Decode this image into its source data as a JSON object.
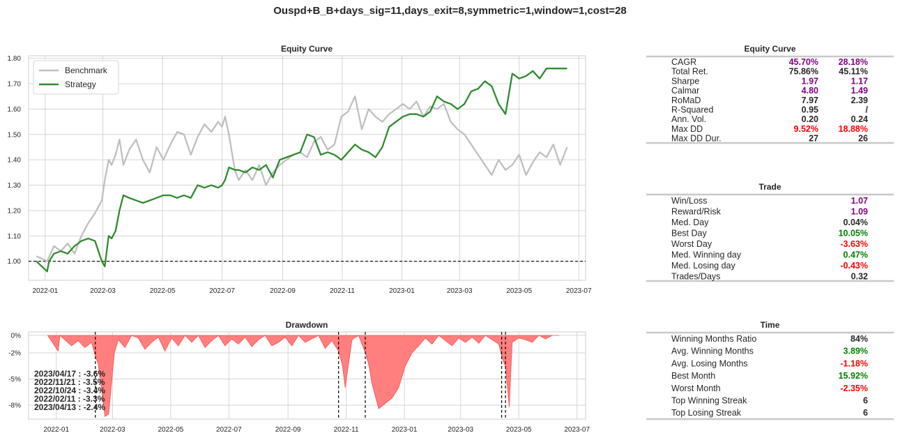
{
  "suptitle": "Ouspd+B_B+days_sig=11,days_exit=8,symmetric=1,window=1,cost=28",
  "colors": {
    "benchmark": "#bfbfbf",
    "strategy": "#2e8b2e",
    "drawdown_fill": "#ff7f7f",
    "drawdown_edge": "#ff4d4d",
    "purple": "#800080",
    "green": "#008000",
    "red": "#ff0000",
    "dark": "#262626",
    "grid": "#d4d4d4"
  },
  "chart_data": [
    {
      "type": "line",
      "title": "Equity Curve",
      "xlabel": "",
      "ylabel": "",
      "x_ticks": [
        "2022-01",
        "2022-03",
        "2022-05",
        "2022-07",
        "2022-09",
        "2022-11",
        "2023-01",
        "2023-03",
        "2023-05",
        "2023-07"
      ],
      "x_range": [
        "2021-12",
        "2023-07"
      ],
      "y_ticks": [
        "1.00",
        "1.10",
        "1.20",
        "1.30",
        "1.40",
        "1.50",
        "1.60",
        "1.70",
        "1.80"
      ],
      "ylim": [
        0.925,
        1.81
      ],
      "reference_line": 1.0,
      "legend": {
        "position": "upper-left",
        "entries": [
          "Benchmark",
          "Strategy"
        ]
      },
      "grid": true,
      "series": [
        {
          "name": "Benchmark",
          "x": [
            "2021-12-23",
            "2022-01-03",
            "2022-01-10",
            "2022-01-17",
            "2022-01-24",
            "2022-01-31",
            "2022-02-07",
            "2022-02-14",
            "2022-02-21",
            "2022-02-28",
            "2022-03-03",
            "2022-03-07",
            "2022-03-10",
            "2022-03-14",
            "2022-03-18",
            "2022-03-22",
            "2022-03-28",
            "2022-04-04",
            "2022-04-11",
            "2022-04-18",
            "2022-04-25",
            "2022-05-02",
            "2022-05-09",
            "2022-05-16",
            "2022-05-23",
            "2022-05-30",
            "2022-06-06",
            "2022-06-13",
            "2022-06-20",
            "2022-06-27",
            "2022-07-01",
            "2022-07-04",
            "2022-07-08",
            "2022-07-14",
            "2022-07-18",
            "2022-07-25",
            "2022-08-01",
            "2022-08-08",
            "2022-08-15",
            "2022-08-22",
            "2022-08-29",
            "2022-09-05",
            "2022-09-12",
            "2022-09-19",
            "2022-09-26",
            "2022-10-03",
            "2022-10-10",
            "2022-10-17",
            "2022-10-24",
            "2022-10-31",
            "2022-11-07",
            "2022-11-14",
            "2022-11-21",
            "2022-11-28",
            "2022-12-05",
            "2022-12-12",
            "2022-12-19",
            "2022-12-26",
            "2023-01-02",
            "2023-01-09",
            "2023-01-16",
            "2023-01-23",
            "2023-01-30",
            "2023-02-06",
            "2023-02-13",
            "2023-02-20",
            "2023-02-27",
            "2023-03-06",
            "2023-03-13",
            "2023-03-20",
            "2023-03-27",
            "2023-04-03",
            "2023-04-10",
            "2023-04-17",
            "2023-04-24",
            "2023-05-01",
            "2023-05-08",
            "2023-05-15",
            "2023-05-22",
            "2023-05-29",
            "2023-06-05",
            "2023-06-12",
            "2023-06-19"
          ],
          "values": [
            1.02,
            1.0,
            1.06,
            1.04,
            1.07,
            1.03,
            1.1,
            1.15,
            1.19,
            1.24,
            1.32,
            1.4,
            1.38,
            1.42,
            1.48,
            1.38,
            1.44,
            1.48,
            1.4,
            1.35,
            1.45,
            1.4,
            1.46,
            1.51,
            1.5,
            1.42,
            1.49,
            1.54,
            1.51,
            1.55,
            1.53,
            1.57,
            1.5,
            1.36,
            1.32,
            1.36,
            1.32,
            1.38,
            1.3,
            1.35,
            1.38,
            1.4,
            1.42,
            1.43,
            1.41,
            1.47,
            1.49,
            1.44,
            1.46,
            1.57,
            1.59,
            1.65,
            1.52,
            1.6,
            1.57,
            1.55,
            1.58,
            1.6,
            1.62,
            1.6,
            1.63,
            1.57,
            1.61,
            1.6,
            1.62,
            1.55,
            1.52,
            1.5,
            1.46,
            1.42,
            1.38,
            1.34,
            1.4,
            1.36,
            1.38,
            1.42,
            1.34,
            1.39,
            1.43,
            1.41,
            1.46,
            1.38,
            1.45
          ]
        },
        {
          "name": "Strategy",
          "x": [
            "2021-12-23",
            "2022-01-03",
            "2022-01-05",
            "2022-01-10",
            "2022-01-17",
            "2022-01-24",
            "2022-01-31",
            "2022-02-07",
            "2022-02-14",
            "2022-02-21",
            "2022-02-28",
            "2022-03-03",
            "2022-03-07",
            "2022-03-10",
            "2022-03-14",
            "2022-03-18",
            "2022-03-22",
            "2022-03-28",
            "2022-04-04",
            "2022-04-11",
            "2022-04-18",
            "2022-04-25",
            "2022-05-02",
            "2022-05-09",
            "2022-05-16",
            "2022-05-23",
            "2022-05-30",
            "2022-06-06",
            "2022-06-13",
            "2022-06-20",
            "2022-06-27",
            "2022-07-01",
            "2022-07-04",
            "2022-07-08",
            "2022-07-14",
            "2022-07-18",
            "2022-07-25",
            "2022-08-01",
            "2022-08-08",
            "2022-08-15",
            "2022-08-22",
            "2022-08-29",
            "2022-09-05",
            "2022-09-12",
            "2022-09-19",
            "2022-09-26",
            "2022-10-03",
            "2022-10-10",
            "2022-10-17",
            "2022-10-24",
            "2022-10-31",
            "2022-11-07",
            "2022-11-14",
            "2022-11-21",
            "2022-11-28",
            "2022-12-05",
            "2022-12-12",
            "2022-12-19",
            "2022-12-26",
            "2023-01-02",
            "2023-01-09",
            "2023-01-16",
            "2023-01-23",
            "2023-01-30",
            "2023-02-06",
            "2023-02-13",
            "2023-02-20",
            "2023-02-27",
            "2023-03-06",
            "2023-03-13",
            "2023-03-20",
            "2023-03-27",
            "2023-04-03",
            "2023-04-10",
            "2023-04-17",
            "2023-04-24",
            "2023-05-01",
            "2023-05-08",
            "2023-05-15",
            "2023-05-22",
            "2023-05-29",
            "2023-06-05",
            "2023-06-12",
            "2023-06-19"
          ],
          "values": [
            1.0,
            0.96,
            1.0,
            1.03,
            1.04,
            1.03,
            1.06,
            1.08,
            1.09,
            1.08,
            1.0,
            0.98,
            1.1,
            1.09,
            1.12,
            1.2,
            1.26,
            1.25,
            1.24,
            1.23,
            1.24,
            1.25,
            1.26,
            1.26,
            1.25,
            1.26,
            1.25,
            1.3,
            1.29,
            1.3,
            1.29,
            1.3,
            1.32,
            1.37,
            1.36,
            1.36,
            1.35,
            1.37,
            1.36,
            1.38,
            1.33,
            1.4,
            1.41,
            1.42,
            1.43,
            1.5,
            1.49,
            1.42,
            1.43,
            1.42,
            1.4,
            1.43,
            1.46,
            1.44,
            1.43,
            1.41,
            1.45,
            1.53,
            1.55,
            1.57,
            1.58,
            1.58,
            1.57,
            1.59,
            1.65,
            1.63,
            1.62,
            1.6,
            1.62,
            1.67,
            1.68,
            1.71,
            1.69,
            1.62,
            1.58,
            1.74,
            1.72,
            1.73,
            1.75,
            1.72,
            1.76,
            1.76,
            1.76,
            1.76
          ]
        }
      ]
    },
    {
      "type": "area",
      "title": "Drawdown",
      "x_ticks": [
        "2022-01",
        "2022-03",
        "2022-05",
        "2022-07",
        "2022-09",
        "2022-11",
        "2023-01",
        "2023-03",
        "2023-05",
        "2023-07"
      ],
      "x_range": [
        "2021-12",
        "2023-07"
      ],
      "y_ticks": [
        "0%",
        "-2%",
        "-5%",
        "-8%"
      ],
      "ylim": [
        -9.6,
        0.4
      ],
      "grid": true,
      "x": [
        "2021-12-23",
        "2022-01-03",
        "2022-01-05",
        "2022-01-10",
        "2022-01-17",
        "2022-01-24",
        "2022-01-31",
        "2022-02-07",
        "2022-02-11",
        "2022-02-14",
        "2022-02-18",
        "2022-02-21",
        "2022-02-25",
        "2022-03-03",
        "2022-03-07",
        "2022-03-14",
        "2022-03-21",
        "2022-03-28",
        "2022-04-04",
        "2022-04-11",
        "2022-04-18",
        "2022-04-25",
        "2022-05-02",
        "2022-05-09",
        "2022-05-16",
        "2022-05-23",
        "2022-05-30",
        "2022-06-06",
        "2022-06-13",
        "2022-06-20",
        "2022-06-27",
        "2022-07-04",
        "2022-07-11",
        "2022-07-18",
        "2022-07-25",
        "2022-08-01",
        "2022-08-08",
        "2022-08-15",
        "2022-08-22",
        "2022-08-29",
        "2022-09-05",
        "2022-09-12",
        "2022-09-19",
        "2022-09-26",
        "2022-10-03",
        "2022-10-10",
        "2022-10-17",
        "2022-10-24",
        "2022-10-28",
        "2022-10-31",
        "2022-11-07",
        "2022-11-14",
        "2022-11-21",
        "2022-11-25",
        "2022-11-28",
        "2022-12-05",
        "2022-12-12",
        "2022-12-19",
        "2022-12-26",
        "2023-01-02",
        "2023-01-09",
        "2023-01-16",
        "2023-01-23",
        "2023-01-30",
        "2023-02-06",
        "2023-02-13",
        "2023-02-20",
        "2023-02-27",
        "2023-03-06",
        "2023-03-13",
        "2023-03-20",
        "2023-03-27",
        "2023-04-03",
        "2023-04-10",
        "2023-04-13",
        "2023-04-17",
        "2023-04-21",
        "2023-04-24",
        "2023-05-01",
        "2023-05-08",
        "2023-05-15",
        "2023-05-22",
        "2023-05-29",
        "2023-06-05",
        "2023-06-12"
      ],
      "values": [
        0,
        -1.8,
        0,
        -0.5,
        -1.2,
        -0.6,
        -1.4,
        -0.8,
        -2.4,
        -3.3,
        -6.5,
        -9.3,
        -9.0,
        -2.0,
        -0.5,
        -1.4,
        0,
        -0.3,
        -1.6,
        -0.8,
        -0.2,
        -1.8,
        -0.3,
        -1.2,
        0,
        -0.8,
        0,
        -1.4,
        -0.6,
        0,
        -1.2,
        -0.4,
        -1.0,
        -0.2,
        -1.3,
        -0.5,
        0,
        -1.2,
        -0.8,
        -0.2,
        -1.2,
        0,
        -0.8,
        -0.4,
        0,
        -1.5,
        -0.6,
        -1.8,
        -3.4,
        -6.0,
        -0.5,
        0,
        -2.0,
        -3.5,
        -5.5,
        -8.4,
        -7.8,
        -7.2,
        -6.0,
        -3.5,
        -2.0,
        -1.2,
        -0.3,
        -1.0,
        0,
        -0.6,
        -1.2,
        -0.3,
        -0.8,
        -0.2,
        -0.9,
        0,
        -0.5,
        -1.0,
        -2.4,
        -3.6,
        -8.2,
        -0.8,
        -0.3,
        -0.5,
        -0.8,
        0,
        -0.4,
        0,
        0
      ],
      "events": [
        "2022-02-11",
        "2022-10-24",
        "2022-11-21",
        "2023-04-13",
        "2023-04-17"
      ],
      "annotations": [
        "2023/04/17 : -3.6%",
        "2022/11/21 : -3.5%",
        "2022/10/24 : -3.4%",
        "2022/02/11 : -3.3%",
        "2023/04/13 : -2.4%"
      ]
    }
  ],
  "tables": {
    "equity": {
      "title": "Equity Curve",
      "rows": [
        {
          "label": "CAGR",
          "v1": "45.70%",
          "c1": "purple",
          "v2": "28.18%",
          "c2": "purple"
        },
        {
          "label": "Total Ret.",
          "v1": "75.86%",
          "c1": "dark",
          "v2": "45.11%",
          "c2": "dark"
        },
        {
          "label": "Sharpe",
          "v1": "1.97",
          "c1": "purple",
          "v2": "1.17",
          "c2": "purple"
        },
        {
          "label": "Calmar",
          "v1": "4.80",
          "c1": "purple",
          "v2": "1.49",
          "c2": "purple"
        },
        {
          "label": "RoMaD",
          "v1": "7.97",
          "c1": "dark",
          "v2": "2.39",
          "c2": "dark"
        },
        {
          "label": "R-Squared",
          "v1": "0.95",
          "c1": "dark",
          "v2": "/",
          "c2": "dark"
        },
        {
          "label": "Ann. Vol.",
          "v1": "0.20",
          "c1": "dark",
          "v2": "0.24",
          "c2": "dark"
        },
        {
          "label": "Max DD",
          "v1": "9.52%",
          "c1": "red",
          "v2": "18.88%",
          "c2": "red"
        },
        {
          "label": "Max DD Dur.",
          "v1": "27",
          "c1": "dark",
          "v2": "26",
          "c2": "dark"
        }
      ]
    },
    "trade": {
      "title": "Trade",
      "rows": [
        {
          "label": "Win/Loss",
          "v": "1.07",
          "c": "purple"
        },
        {
          "label": "Reward/Risk",
          "v": "1.09",
          "c": "purple"
        },
        {
          "label": "Med. Day",
          "v": "0.04%",
          "c": "dark"
        },
        {
          "label": "Best Day",
          "v": "10.05%",
          "c": "green"
        },
        {
          "label": "Worst Day",
          "v": "-3.63%",
          "c": "red"
        },
        {
          "label": "Med. Winning day",
          "v": "0.47%",
          "c": "green"
        },
        {
          "label": "Med. Losing day",
          "v": "-0.43%",
          "c": "red"
        },
        {
          "label": "Trades/Days",
          "v": "0.32",
          "c": "dark"
        }
      ]
    },
    "time": {
      "title": "Time",
      "rows": [
        {
          "label": "Winning Months Ratio",
          "v": "84%",
          "c": "dark"
        },
        {
          "label": "Avg. Winning Months",
          "v": "3.89%",
          "c": "green"
        },
        {
          "label": "Avg. Losing Months",
          "v": "-1.18%",
          "c": "red"
        },
        {
          "label": "Best Month",
          "v": "15.92%",
          "c": "green"
        },
        {
          "label": "Worst Month",
          "v": "-2.35%",
          "c": "red"
        },
        {
          "label": "Top Winning Streak",
          "v": "6",
          "c": "dark"
        },
        {
          "label": "Top Losing Streak",
          "v": "6",
          "c": "dark"
        }
      ]
    }
  }
}
